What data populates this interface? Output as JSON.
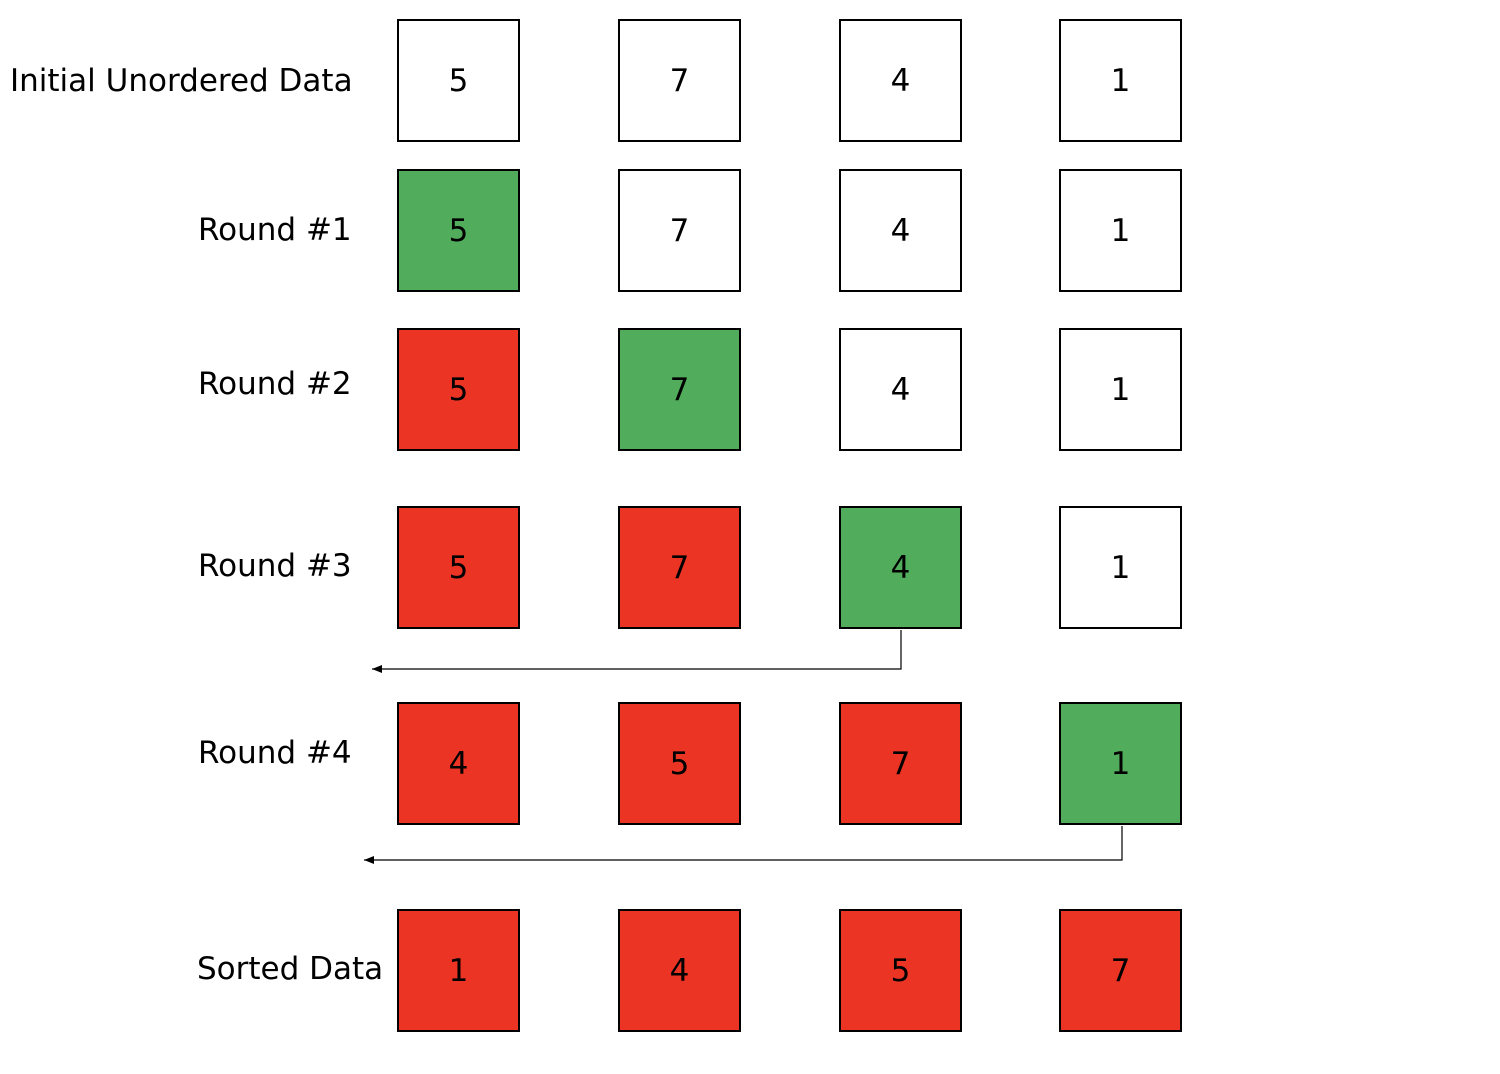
{
  "colors": {
    "unsorted": "#ffffff",
    "current": "#51ad5c",
    "sorted": "#ec3425",
    "border": "#000000"
  },
  "rows": [
    {
      "label": "Initial Unordered Data",
      "cells": [
        {
          "value": "5",
          "state": "unsorted"
        },
        {
          "value": "7",
          "state": "unsorted"
        },
        {
          "value": "4",
          "state": "unsorted"
        },
        {
          "value": "1",
          "state": "unsorted"
        }
      ]
    },
    {
      "label": "Round #1",
      "cells": [
        {
          "value": "5",
          "state": "current"
        },
        {
          "value": "7",
          "state": "unsorted"
        },
        {
          "value": "4",
          "state": "unsorted"
        },
        {
          "value": "1",
          "state": "unsorted"
        }
      ]
    },
    {
      "label": "Round #2",
      "cells": [
        {
          "value": "5",
          "state": "sorted"
        },
        {
          "value": "7",
          "state": "current"
        },
        {
          "value": "4",
          "state": "unsorted"
        },
        {
          "value": "1",
          "state": "unsorted"
        }
      ]
    },
    {
      "label": "Round #3",
      "cells": [
        {
          "value": "5",
          "state": "sorted"
        },
        {
          "value": "7",
          "state": "sorted"
        },
        {
          "value": "4",
          "state": "current"
        },
        {
          "value": "1",
          "state": "unsorted"
        }
      ]
    },
    {
      "label": "Round #4",
      "cells": [
        {
          "value": "4",
          "state": "sorted"
        },
        {
          "value": "5",
          "state": "sorted"
        },
        {
          "value": "7",
          "state": "sorted"
        },
        {
          "value": "1",
          "state": "current"
        }
      ]
    },
    {
      "label": "Sorted Data",
      "cells": [
        {
          "value": "1",
          "state": "sorted"
        },
        {
          "value": "4",
          "state": "sorted"
        },
        {
          "value": "5",
          "state": "sorted"
        },
        {
          "value": "7",
          "state": "sorted"
        }
      ]
    }
  ],
  "insertion_arrows": [
    {
      "from_row": 3,
      "from_column": 2
    },
    {
      "from_row": 4,
      "from_column": 3
    }
  ]
}
